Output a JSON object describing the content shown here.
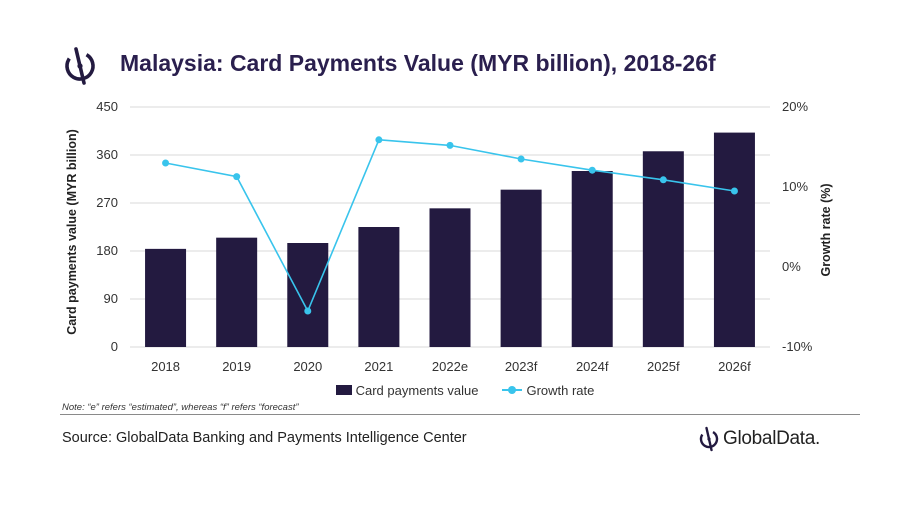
{
  "header": {
    "title": "Malaysia: Card Payments Value (MYR billion), 2018-26f",
    "logo_icon": "globaldata-emblem-icon"
  },
  "chart_data": {
    "type": "bar",
    "title": "Malaysia: Card Payments Value (MYR billion), 2018-26f",
    "categories": [
      "2018",
      "2019",
      "2020",
      "2021",
      "2022e",
      "2023f",
      "2024f",
      "2025f",
      "2026f"
    ],
    "series": [
      {
        "name": "Card payments value",
        "type": "bar",
        "axis": "left",
        "color": "#231a40",
        "values": [
          184,
          205,
          195,
          225,
          260,
          295,
          330,
          367,
          402
        ]
      },
      {
        "name": "Growth rate",
        "type": "line",
        "axis": "right",
        "color": "#39c4ec",
        "values": [
          13.0,
          11.3,
          -5.5,
          15.9,
          15.2,
          13.5,
          12.1,
          10.9,
          9.5
        ]
      }
    ],
    "ylabel": "Card payments value (MYR billion)",
    "ylim": [
      0,
      450
    ],
    "yticks": [
      "0",
      "90",
      "180",
      "270",
      "360",
      "450"
    ],
    "y2label": "Growth rate (%)",
    "y2lim": [
      -10,
      20
    ],
    "y2ticks": [
      "-10%",
      "0%",
      "10%",
      "20%"
    ],
    "grid": true,
    "legend_position": "bottom"
  },
  "note": "Note: “e” refers “estimated”, whereas “f” refers “forecast”",
  "footer": {
    "source": "Source: GlobalData Banking and Payments Intelligence Center",
    "brand": "GlobalData.",
    "brand_icon": "globaldata-emblem-icon"
  }
}
